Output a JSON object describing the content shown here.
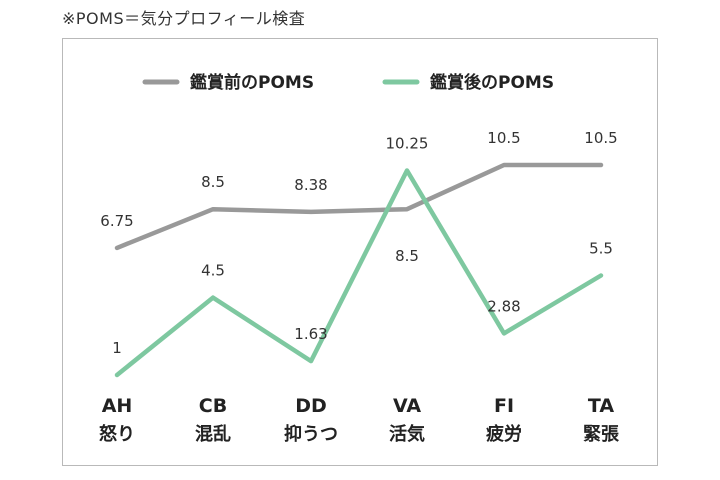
{
  "note": "※POMS＝気分プロフィール検査",
  "chart_data": {
    "type": "line",
    "categories": [
      "AH",
      "CB",
      "DD",
      "VA",
      "FI",
      "TA"
    ],
    "category_names": [
      "怒り",
      "混乱",
      "抑うつ",
      "活気",
      "疲労",
      "緊張"
    ],
    "series": [
      {
        "name": "鑑賞前のPOMS",
        "color": "#999999",
        "values": [
          6.75,
          8.5,
          8.38,
          8.5,
          10.5,
          10.5
        ],
        "labels": [
          "6.75",
          "8.5",
          "8.38",
          "8.5",
          "10.5",
          "10.5"
        ]
      },
      {
        "name": "鑑賞後のPOMS",
        "color": "#7ec8a0",
        "values": [
          1,
          4.5,
          1.63,
          10.25,
          2.88,
          5.5
        ],
        "labels": [
          "1",
          "4.5",
          "1.63",
          "10.25",
          "2.88",
          "5.5"
        ]
      }
    ],
    "ylim": [
      1,
      10.5
    ],
    "grid": false,
    "legend": "top"
  }
}
